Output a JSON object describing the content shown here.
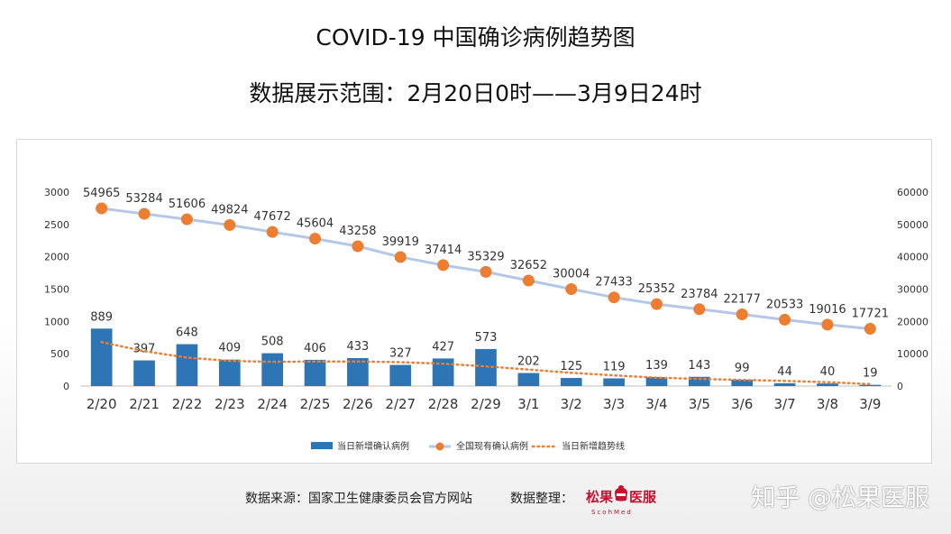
{
  "title_line1": "COVID-19 中国确诊病例趋势图",
  "title_line2": "数据展示范围：2月20日0时——3月9日24时",
  "footer": {
    "source": "数据来源：国家卫生健康委员会官方网站",
    "organizer": "数据整理：",
    "logo_left": "松果",
    "logo_right": "医服",
    "logo_sub": "ScohMed"
  },
  "watermark": "知乎 @松果医服",
  "colors": {
    "bar": "#2e75b6",
    "line": "#b4c7e7",
    "marker": "#ed7d31",
    "trend": "#ed7d31"
  },
  "chart_data": {
    "type": "bar",
    "categories": [
      "2/20",
      "2/21",
      "2/22",
      "2/23",
      "2/24",
      "2/25",
      "2/26",
      "2/27",
      "2/28",
      "2/29",
      "3/1",
      "3/2",
      "3/3",
      "3/4",
      "3/5",
      "3/6",
      "3/7",
      "3/8",
      "3/9"
    ],
    "series": [
      {
        "name": "当日新增确认病例",
        "type": "bar",
        "axis": "left",
        "values": [
          889,
          397,
          648,
          409,
          508,
          406,
          433,
          327,
          427,
          573,
          202,
          125,
          119,
          139,
          143,
          99,
          44,
          40,
          19
        ]
      },
      {
        "name": "全国现有确认病例",
        "type": "line",
        "axis": "right",
        "values": [
          54965,
          53284,
          51606,
          49824,
          47672,
          45604,
          43258,
          39919,
          37414,
          35329,
          32652,
          30004,
          27433,
          25352,
          23784,
          22177,
          20533,
          19016,
          17721
        ]
      },
      {
        "name": "当日新增趋势线",
        "type": "trendline",
        "axis": "left",
        "values": [
          680,
          540,
          440,
          390,
          375,
          380,
          380,
          370,
          345,
          305,
          255,
          205,
          165,
          130,
          110,
          95,
          80,
          60,
          30
        ]
      }
    ],
    "yticks_left": [
      "3000",
      "2500",
      "2000",
      "1500",
      "1000",
      "500",
      "0"
    ],
    "yticks_right": [
      "60000",
      "50000",
      "40000",
      "30000",
      "20000",
      "10000",
      "0"
    ],
    "ylim_left": [
      0,
      3000
    ],
    "ylim_right": [
      0,
      60000
    ],
    "legend_position": "bottom",
    "grid": false
  }
}
